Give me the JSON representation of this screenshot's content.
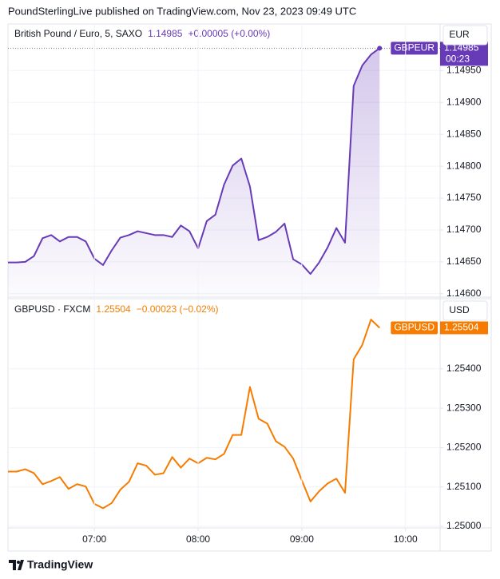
{
  "header": {
    "text": "PoundSterlingLive published on TradingView.com, Nov 23, 2023 09:49 UTC"
  },
  "footer": {
    "brand": "TradingView"
  },
  "chart_data": [
    {
      "type": "line",
      "title": "British Pound / Euro, 5, SAXO",
      "change": "+0.00005 (+0.00%)",
      "currency": "EUR",
      "countdown": "00:23",
      "area": true,
      "grid": true,
      "last_price_line": true,
      "x": [
        "06:10",
        "06:15",
        "06:20",
        "06:25",
        "06:30",
        "06:35",
        "06:40",
        "06:45",
        "06:50",
        "06:55",
        "07:00",
        "07:05",
        "07:10",
        "07:15",
        "07:20",
        "07:25",
        "07:30",
        "07:35",
        "07:40",
        "07:45",
        "07:50",
        "07:55",
        "08:00",
        "08:05",
        "08:10",
        "08:15",
        "08:20",
        "08:25",
        "08:30",
        "08:35",
        "08:40",
        "08:45",
        "08:50",
        "08:55",
        "09:00",
        "09:05",
        "09:10",
        "09:15",
        "09:20",
        "09:25",
        "09:30",
        "09:35",
        "09:40",
        "09:45"
      ],
      "series": [
        {
          "name": "GBPEUR",
          "color": "#673ab7",
          "values": [
            1.14649,
            1.14649,
            1.1465,
            1.14659,
            1.14687,
            1.14692,
            1.14682,
            1.14689,
            1.14689,
            1.14682,
            1.14655,
            1.14645,
            1.14668,
            1.14688,
            1.14692,
            1.14698,
            1.14695,
            1.14692,
            1.14692,
            1.14689,
            1.14707,
            1.14698,
            1.14671,
            1.14714,
            1.14724,
            1.14771,
            1.14801,
            1.14812,
            1.14768,
            1.14684,
            1.14689,
            1.14697,
            1.1471,
            1.14654,
            1.14646,
            1.14631,
            1.14649,
            1.14673,
            1.14703,
            1.1468,
            1.14926,
            1.14958,
            1.14975,
            1.14985
          ]
        }
      ],
      "xlim": [
        "06:10",
        "10:20"
      ],
      "ylim": [
        1.14596,
        1.15023
      ],
      "yticks": [
        {
          "value": 1.146,
          "label": "1.14600"
        },
        {
          "value": 1.1465,
          "label": "1.14650"
        },
        {
          "value": 1.147,
          "label": "1.14700"
        },
        {
          "value": 1.1475,
          "label": "1.14750"
        },
        {
          "value": 1.148,
          "label": "1.14800"
        },
        {
          "value": 1.1485,
          "label": "1.14850"
        },
        {
          "value": 1.149,
          "label": "1.14900"
        },
        {
          "value": 1.1495,
          "label": "1.14950"
        }
      ]
    },
    {
      "type": "line",
      "title": "GBPUSD · FXCM",
      "change": "−0.00023 (−0.02%)",
      "currency": "USD",
      "area": false,
      "grid": true,
      "last_price_line": false,
      "x": [
        "06:10",
        "06:15",
        "06:20",
        "06:25",
        "06:30",
        "06:35",
        "06:40",
        "06:45",
        "06:50",
        "06:55",
        "07:00",
        "07:05",
        "07:10",
        "07:15",
        "07:20",
        "07:25",
        "07:30",
        "07:35",
        "07:40",
        "07:45",
        "07:50",
        "07:55",
        "08:00",
        "08:05",
        "08:10",
        "08:15",
        "08:20",
        "08:25",
        "08:30",
        "08:35",
        "08:40",
        "08:45",
        "08:50",
        "08:55",
        "09:00",
        "09:05",
        "09:10",
        "09:15",
        "09:20",
        "09:25",
        "09:30",
        "09:35",
        "09:40",
        "09:45"
      ],
      "series": [
        {
          "name": "GBPUSD",
          "color": "#f57c00",
          "values": [
            1.25139,
            1.25139,
            1.25145,
            1.25135,
            1.25107,
            1.25115,
            1.25125,
            1.25095,
            1.25107,
            1.25101,
            1.25057,
            1.25046,
            1.25059,
            1.25093,
            1.25113,
            1.2516,
            1.25154,
            1.25131,
            1.25135,
            1.25176,
            1.25149,
            1.25172,
            1.2516,
            1.25174,
            1.2517,
            1.25184,
            1.25232,
            1.25232,
            1.25354,
            1.25273,
            1.25261,
            1.25216,
            1.25202,
            1.25172,
            1.25117,
            1.25063,
            1.25089,
            1.25109,
            1.25121,
            1.25085,
            1.25424,
            1.25461,
            1.25525,
            1.25504
          ]
        }
      ],
      "xlim": [
        "06:10",
        "10:20"
      ],
      "xticks": [
        "07:00",
        "08:00",
        "09:00",
        "10:00"
      ],
      "ylim": [
        1.24996,
        1.25576
      ],
      "yticks": [
        {
          "value": 1.25,
          "label": "1.25000"
        },
        {
          "value": 1.251,
          "label": "1.25100"
        },
        {
          "value": 1.252,
          "label": "1.25200"
        },
        {
          "value": 1.253,
          "label": "1.25300"
        },
        {
          "value": 1.254,
          "label": "1.25400"
        }
      ]
    }
  ]
}
